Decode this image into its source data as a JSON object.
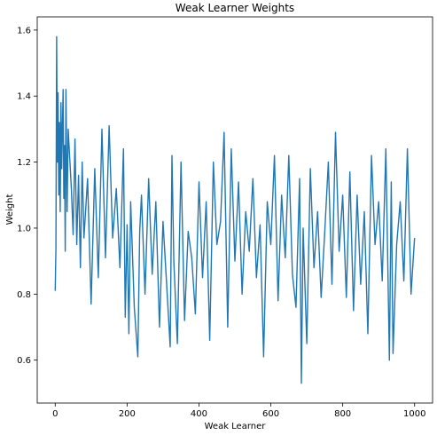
{
  "chart_data": {
    "type": "line",
    "title": "Weak Learner Weights",
    "xlabel": "Weak Learner",
    "ylabel": "Weight",
    "xlim": [
      -50,
      1050
    ],
    "ylim": [
      0.47,
      1.64
    ],
    "xticks": [
      0,
      200,
      400,
      600,
      800,
      1000
    ],
    "yticks": [
      0.6,
      0.8,
      1.0,
      1.2,
      1.4,
      1.6
    ],
    "xtick_labels": [
      "0",
      "200",
      "400",
      "600",
      "800",
      "1000"
    ],
    "ytick_labels": [
      "0.6",
      "0.8",
      "1.0",
      "1.2",
      "1.4",
      "1.6"
    ],
    "grid": false,
    "legend": "none",
    "series": [
      {
        "color": "#1f77b4",
        "x": [
          0,
          2,
          4,
          6,
          8,
          10,
          12,
          14,
          16,
          18,
          20,
          22,
          24,
          26,
          28,
          30,
          33,
          36,
          40,
          45,
          50,
          55,
          60,
          65,
          70,
          75,
          80,
          90,
          100,
          110,
          120,
          130,
          140,
          150,
          160,
          170,
          180,
          190,
          195,
          200,
          205,
          210,
          220,
          230,
          235,
          240,
          250,
          260,
          270,
          280,
          290,
          300,
          310,
          320,
          325,
          330,
          340,
          350,
          360,
          370,
          380,
          390,
          400,
          410,
          420,
          430,
          440,
          450,
          460,
          470,
          480,
          490,
          500,
          510,
          520,
          530,
          540,
          550,
          560,
          570,
          580,
          590,
          600,
          610,
          620,
          630,
          640,
          650,
          660,
          670,
          680,
          685,
          690,
          700,
          710,
          720,
          730,
          740,
          750,
          760,
          770,
          780,
          790,
          800,
          810,
          820,
          830,
          840,
          850,
          860,
          870,
          880,
          890,
          900,
          910,
          920,
          930,
          935,
          940,
          950,
          960,
          970,
          980,
          990,
          1000
        ],
        "y": [
          0.81,
          0.94,
          1.58,
          1.2,
          1.41,
          1.1,
          1.32,
          1.05,
          1.38,
          1.18,
          1.3,
          1.42,
          1.09,
          1.25,
          0.93,
          1.42,
          1.05,
          1.3,
          1.22,
          1.12,
          0.98,
          1.27,
          0.95,
          1.16,
          0.88,
          1.2,
          0.97,
          1.15,
          0.77,
          1.18,
          0.85,
          1.3,
          0.91,
          1.31,
          0.97,
          1.12,
          0.88,
          1.24,
          0.73,
          1.01,
          0.68,
          1.08,
          0.76,
          0.61,
          0.99,
          1.1,
          0.8,
          1.15,
          0.86,
          1.08,
          0.7,
          1.02,
          0.83,
          0.64,
          1.22,
          0.9,
          0.65,
          1.2,
          0.72,
          0.99,
          0.91,
          0.74,
          1.14,
          0.85,
          1.08,
          0.66,
          1.2,
          0.95,
          1.02,
          1.29,
          0.7,
          1.24,
          0.9,
          1.14,
          0.8,
          1.05,
          0.93,
          1.15,
          0.85,
          1.01,
          0.61,
          1.08,
          0.95,
          1.22,
          0.78,
          1.1,
          0.91,
          1.22,
          0.86,
          0.76,
          1.15,
          0.53,
          1.0,
          0.65,
          1.18,
          0.88,
          1.05,
          0.79,
          0.99,
          1.2,
          0.83,
          1.29,
          0.93,
          1.1,
          0.79,
          1.17,
          0.75,
          1.1,
          0.83,
          1.05,
          0.68,
          1.22,
          0.95,
          1.08,
          0.84,
          1.24,
          0.6,
          1.14,
          0.62,
          0.95,
          1.08,
          0.84,
          1.24,
          0.8,
          0.97
        ]
      }
    ]
  }
}
